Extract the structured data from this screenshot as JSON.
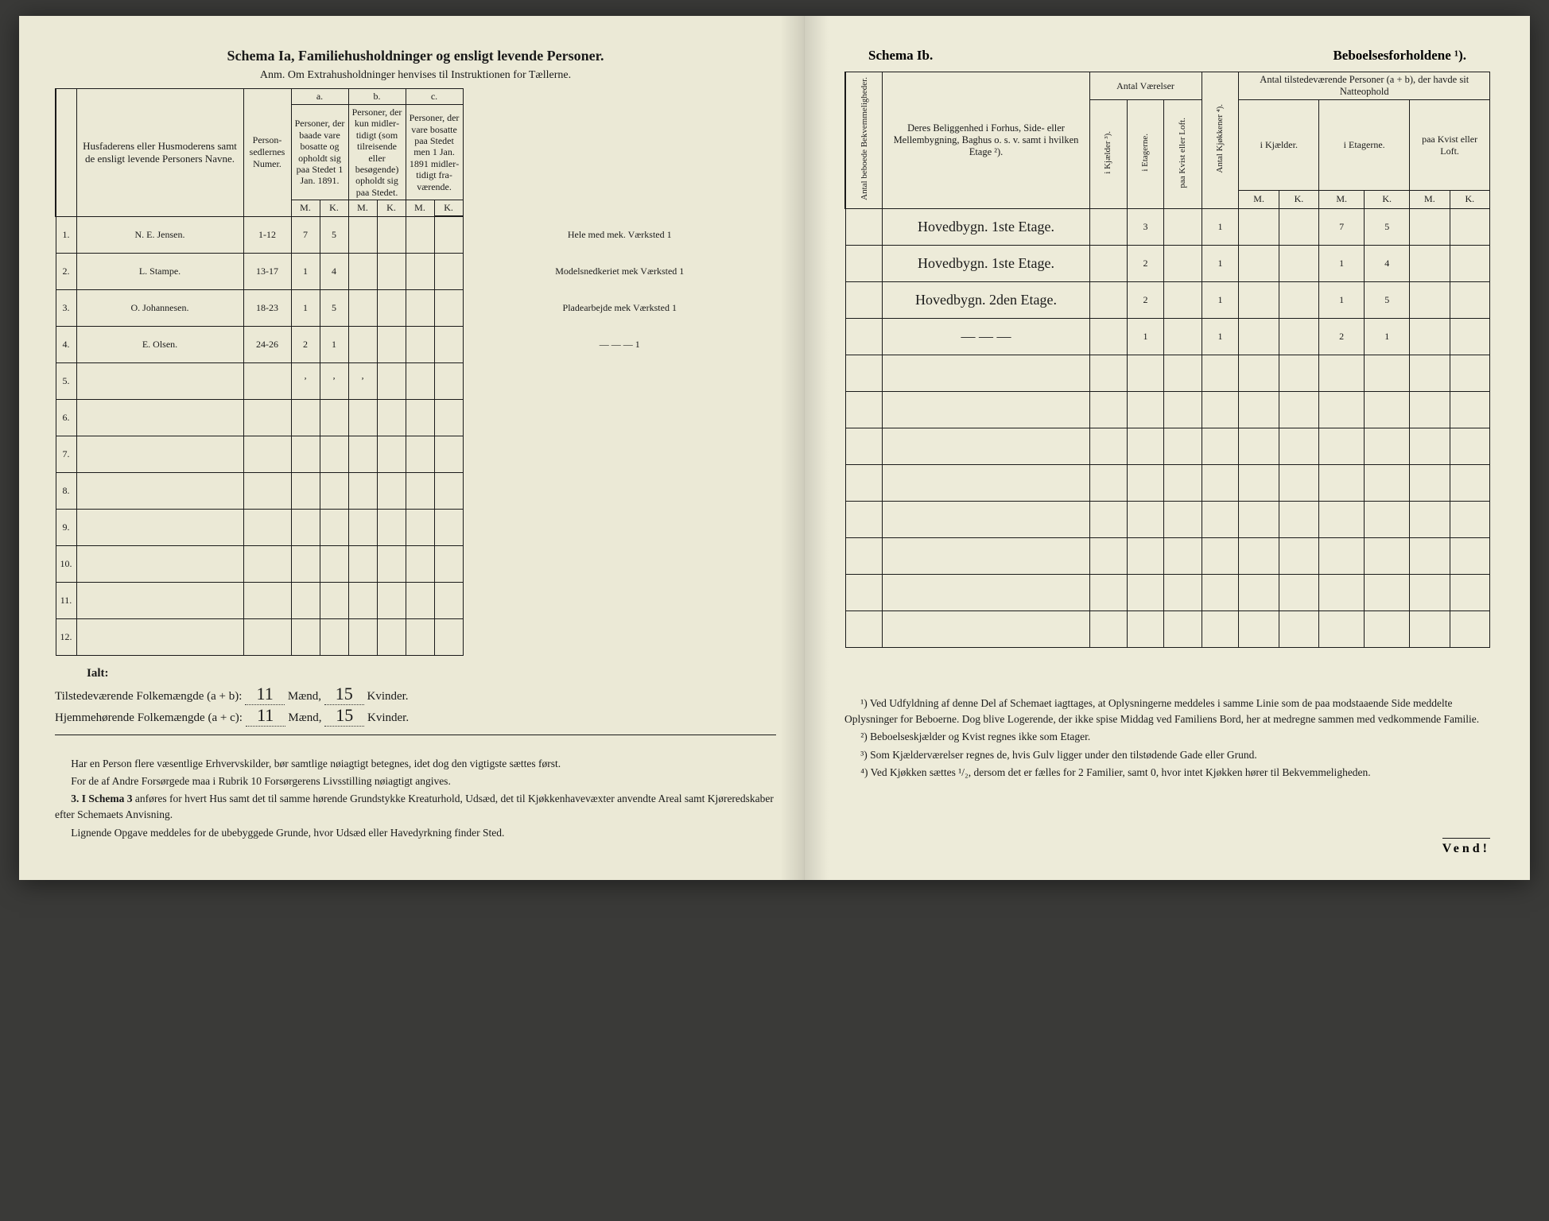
{
  "left": {
    "title": "Schema Ia,   Familiehusholdninger og ensligt levende Personer.",
    "subtitle": "Anm. Om Extrahusholdninger henvises til Instruktionen for Tællerne.",
    "col_names": "Husfaderens eller Husmode­rens samt de ensligt levende Personers Navne.",
    "col_num": "Person­sedler­nes Numer.",
    "group_a": "a.",
    "group_a_text": "Personer, der baade vare bo­satte og opholdt sig paa Stedet 1 Jan. 1891.",
    "group_b": "b.",
    "group_b_text": "Personer, der kun midler­tidigt (som tilreisende eller besøgende) opholdt sig paa Stedet.",
    "group_c": "c.",
    "group_c_text": "Personer, der vare bosatte paa Stedet men 1 Jan. 1891 midler­tidigt fra­værende.",
    "mk_m": "M.",
    "mk_k": "K.",
    "rows": [
      {
        "n": "1.",
        "name": "N. E. Jensen.",
        "num": "1-12",
        "aM": "7",
        "aK": "5",
        "bM": "",
        "bK": "",
        "cM": "",
        "cK": "",
        "purple": "Hele med mek. Værksted 1"
      },
      {
        "n": "2.",
        "name": "L. Stampe.",
        "num": "13-17",
        "aM": "1",
        "aK": "4",
        "bM": "",
        "bK": "",
        "cM": "",
        "cK": "",
        "purple": "Modelsnedkeriet mek Værksted 1"
      },
      {
        "n": "3.",
        "name": "O. Johannesen.",
        "num": "18-23",
        "aM": "1",
        "aK": "5",
        "bM": "",
        "bK": "",
        "cM": "",
        "cK": "",
        "purple": "Pladearbejde mek Værksted 1"
      },
      {
        "n": "4.",
        "name": "E. Olsen.",
        "num": "24-26",
        "aM": "2",
        "aK": "1",
        "bM": "",
        "bK": "",
        "cM": "",
        "cK": "",
        "purple": "— — — 1"
      },
      {
        "n": "5.",
        "name": "",
        "num": "",
        "aM": "ʼ",
        "aK": "ʼ",
        "bM": "ʼ",
        "bK": "",
        "cM": "",
        "cK": "",
        "purple": ""
      },
      {
        "n": "6.",
        "name": "",
        "num": "",
        "aM": "",
        "aK": "",
        "bM": "",
        "bK": "",
        "cM": "",
        "cK": "",
        "purple": ""
      },
      {
        "n": "7.",
        "name": "",
        "num": "",
        "aM": "",
        "aK": "",
        "bM": "",
        "bK": "",
        "cM": "",
        "cK": "",
        "purple": ""
      },
      {
        "n": "8.",
        "name": "",
        "num": "",
        "aM": "",
        "aK": "",
        "bM": "",
        "bK": "",
        "cM": "",
        "cK": "",
        "purple": ""
      },
      {
        "n": "9.",
        "name": "",
        "num": "",
        "aM": "",
        "aK": "",
        "bM": "",
        "bK": "",
        "cM": "",
        "cK": "",
        "purple": ""
      },
      {
        "n": "10.",
        "name": "",
        "num": "",
        "aM": "",
        "aK": "",
        "bM": "",
        "bK": "",
        "cM": "",
        "cK": "",
        "purple": ""
      },
      {
        "n": "11.",
        "name": "",
        "num": "",
        "aM": "",
        "aK": "",
        "bM": "",
        "bK": "",
        "cM": "",
        "cK": "",
        "purple": ""
      },
      {
        "n": "12.",
        "name": "",
        "num": "",
        "aM": "",
        "aK": "",
        "bM": "",
        "bK": "",
        "cM": "",
        "cK": "",
        "purple": ""
      }
    ],
    "ialt": "Ialt:",
    "tot1_label_a": "Tilstedeværende Folkemængde (a + b):",
    "tot1_label_b": "Hjemmehørende Folkemængde (a + c):",
    "tot_maend": "Mænd,",
    "tot_kvinder": "Kvinder.",
    "tot1_m": "11",
    "tot1_k": "15",
    "tot2_m": "11",
    "tot2_k": "15",
    "foot1": "Har en Person flere væsentlige Erhvervskilder, bør samtlige nøiagtigt betegnes, idet dog den vigtigste sættes først.",
    "foot2": "For de af Andre Forsørgede maa i Rubrik 10 Forsørgerens Livsstilling nøiagtigt angives.",
    "foot3_lead": "3. I Schema 3",
    "foot3": " anføres for hvert Hus samt det til samme hørende Grund­stykke Kreaturhold, Udsæd, det til Kjøkkenhavevæxter anvendte Areal samt Kjøreredskaber efter Schemaets Anvisning.",
    "foot4": "Lignende Opgave meddeles for de ubebyggede Grunde, hvor Udsæd eller Havedyrkning finder Sted."
  },
  "right": {
    "title_l": "Schema Ib.",
    "title_r": "Beboelsesforholdene ¹).",
    "col_bekv": "Antal beboede Bekvemmeligheder.",
    "col_belig": "Deres Beliggenhed i Forhus, Side- eller Mellembygning, Baghus o. s. v. samt i hvilken Etage ²).",
    "grp_vaer": "Antal Værelser",
    "v_kjaelder": "i Kjælder ³).",
    "v_etagerne": "i Etagerne.",
    "v_kvist": "paa Kvist eller Loft.",
    "col_kjok": "Antal Kjøkkener ⁴).",
    "grp_natte": "Antal tilstedeværende Personer (a + b), der havde sit Natteophold",
    "n_kjaelder": "i Kjæl­der.",
    "n_etagerne": "i Etagerne.",
    "n_kvist": "paa Kvist eller Loft.",
    "mk_m": "M.",
    "mk_k": "K.",
    "rows": [
      {
        "belig": "Hovedbygn. 1ste Etage.",
        "kj": "",
        "et": "3",
        "kv": "",
        "kjok": "1",
        "nKjM": "",
        "nKjK": "",
        "nEtM": "7",
        "nEtK": "5",
        "nKvM": "",
        "nKvK": ""
      },
      {
        "belig": "Hovedbygn. 1ste Etage.",
        "kj": "",
        "et": "2",
        "kv": "",
        "kjok": "1",
        "nKjM": "",
        "nKjK": "",
        "nEtM": "1",
        "nEtK": "4",
        "nKvM": "",
        "nKvK": ""
      },
      {
        "belig": "Hovedbygn. 2den Etage.",
        "kj": "",
        "et": "2",
        "kv": "",
        "kjok": "1",
        "nKjM": "",
        "nKjK": "",
        "nEtM": "1",
        "nEtK": "5",
        "nKvM": "",
        "nKvK": ""
      },
      {
        "belig": "— — —",
        "kj": "",
        "et": "1",
        "kv": "",
        "kjok": "1",
        "nKjM": "",
        "nKjK": "",
        "nEtM": "2",
        "nEtK": "1",
        "nKvM": "",
        "nKvK": ""
      },
      {
        "belig": "",
        "kj": "",
        "et": "",
        "kv": "",
        "kjok": "",
        "nKjM": "",
        "nKjK": "",
        "nEtM": "",
        "nEtK": "",
        "nKvM": "",
        "nKvK": ""
      },
      {
        "belig": "",
        "kj": "",
        "et": "",
        "kv": "",
        "kjok": "",
        "nKjM": "",
        "nKjK": "",
        "nEtM": "",
        "nEtK": "",
        "nKvM": "",
        "nKvK": ""
      },
      {
        "belig": "",
        "kj": "",
        "et": "",
        "kv": "",
        "kjok": "",
        "nKjM": "",
        "nKjK": "",
        "nEtM": "",
        "nEtK": "",
        "nKvM": "",
        "nKvK": ""
      },
      {
        "belig": "",
        "kj": "",
        "et": "",
        "kv": "",
        "kjok": "",
        "nKjM": "",
        "nKjK": "",
        "nEtM": "",
        "nEtK": "",
        "nKvM": "",
        "nKvK": ""
      },
      {
        "belig": "",
        "kj": "",
        "et": "",
        "kv": "",
        "kjok": "",
        "nKjM": "",
        "nKjK": "",
        "nEtM": "",
        "nEtK": "",
        "nKvM": "",
        "nKvK": ""
      },
      {
        "belig": "",
        "kj": "",
        "et": "",
        "kv": "",
        "kjok": "",
        "nKjM": "",
        "nKjK": "",
        "nEtM": "",
        "nEtK": "",
        "nKvM": "",
        "nKvK": ""
      },
      {
        "belig": "",
        "kj": "",
        "et": "",
        "kv": "",
        "kjok": "",
        "nKjM": "",
        "nKjK": "",
        "nEtM": "",
        "nEtK": "",
        "nKvM": "",
        "nKvK": ""
      },
      {
        "belig": "",
        "kj": "",
        "et": "",
        "kv": "",
        "kjok": "",
        "nKjM": "",
        "nKjK": "",
        "nEtM": "",
        "nEtK": "",
        "nKvM": "",
        "nKvK": ""
      }
    ],
    "fn1": "¹) Ved Udfyldning af denne Del af Schemaet iagttages, at Oplysningerne meddeles i samme Linie som de paa modstaaende Side meddelte Oplysninger for Beboerne. Dog blive Logerende, der ikke spise Middag ved Familiens Bord, her at medregne sammen med vedkommende Familie.",
    "fn2": "²) Beboelseskjælder og Kvist regnes ikke som Etager.",
    "fn3": "³) Som Kjælderværelser regnes de, hvis Gulv ligger under den tilstødende Gade eller Grund.",
    "fn4": "⁴) Ved Kjøkken sættes ¹/₂, dersom det er fælles for 2 Familier, samt 0, hvor intet Kjøkken hører til Bekvemmeligheden.",
    "vend": "Vend!"
  },
  "colors": {
    "paper": "#ebe9d6",
    "ink": "#1a1a1a",
    "hand": "#2a2a2a",
    "purple": "#6b3d8f",
    "bg": "#3a3a38"
  }
}
